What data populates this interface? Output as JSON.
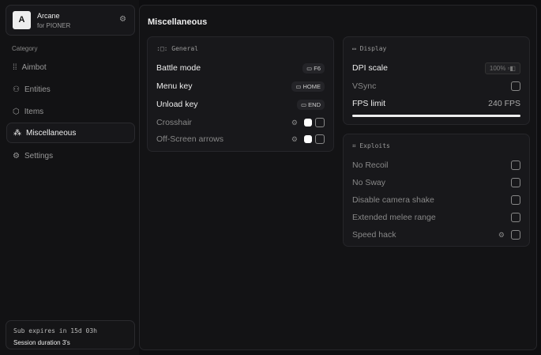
{
  "brand": {
    "logo": "A",
    "name": "Arcane",
    "sub": "for PIONER"
  },
  "sidebar": {
    "category": "Category",
    "items": [
      {
        "label": "Aimbot",
        "icon": "crosshair-dots"
      },
      {
        "label": "Entities",
        "icon": "entities"
      },
      {
        "label": "Items",
        "icon": "box"
      },
      {
        "label": "Miscellaneous",
        "icon": "misc"
      },
      {
        "label": "Settings",
        "icon": "gear"
      }
    ],
    "active": "Miscellaneous"
  },
  "subscription": {
    "expires": "Sub expires in 15d 03h",
    "session": "Session duration 3's"
  },
  "main": {
    "title": "Miscellaneous"
  },
  "general": {
    "title": "General",
    "binds": [
      {
        "label": "Battle mode",
        "key": "F6"
      },
      {
        "label": "Menu key",
        "key": "HOME"
      },
      {
        "label": "Unload key",
        "key": "END"
      }
    ],
    "toggles": [
      {
        "label": "Crosshair",
        "color": "#ffffff",
        "checked": false
      },
      {
        "label": "Off-Screen arrows",
        "color": "#ffffff",
        "checked": false
      }
    ]
  },
  "display": {
    "title": "Display",
    "dpi_label": "DPI scale",
    "dpi_value": "100%",
    "vsync": "VSync",
    "fps_label": "FPS limit",
    "fps_value": "240 FPS",
    "fps_fill": 1.0
  },
  "exploits": {
    "title": "Exploits",
    "items": [
      "No Recoil",
      "No Sway",
      "Disable camera shake",
      "Extended melee range",
      "Speed hack"
    ]
  }
}
